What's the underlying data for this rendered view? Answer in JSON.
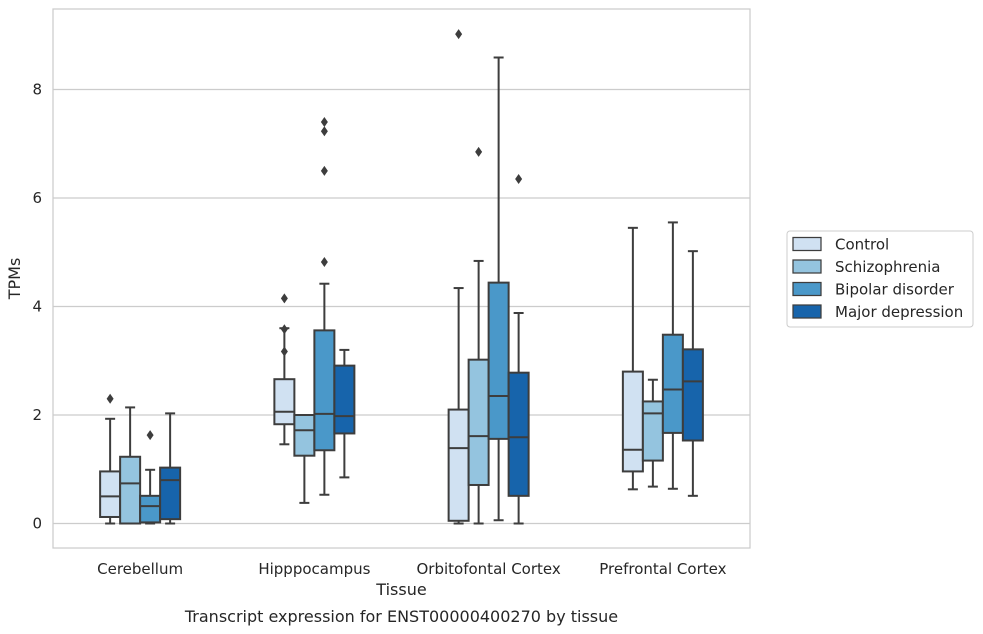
{
  "caption": "Transcript expression for ENST00000400270 by tissue",
  "chart_data": {
    "type": "boxplot",
    "xlabel": "Tissue",
    "ylabel": "TPMs",
    "ylim": [
      -0.45,
      9.45
    ],
    "yticks": [
      0,
      2,
      4,
      6,
      8
    ],
    "grid": "horizontal",
    "legend_position": "right",
    "categories": [
      "Cerebellum",
      "Hipppocampus",
      "Orbitofontal Cortex",
      "Prefrontal Cortex"
    ],
    "series": [
      {
        "name": "Control",
        "color": "#d0e1f2",
        "boxes": [
          {
            "whislo": 0.0,
            "q1": 0.12,
            "med": 0.5,
            "q3": 0.96,
            "whishi": 1.93,
            "fliers": [
              2.3
            ]
          },
          {
            "whislo": 1.46,
            "q1": 1.83,
            "med": 2.06,
            "q3": 2.66,
            "whishi": 3.6,
            "fliers": [
              4.15,
              3.58,
              3.17
            ]
          },
          {
            "whislo": 0.0,
            "q1": 0.05,
            "med": 1.39,
            "q3": 2.1,
            "whishi": 4.34,
            "fliers": [
              9.02
            ]
          },
          {
            "whislo": 0.63,
            "q1": 0.96,
            "med": 1.36,
            "q3": 2.8,
            "whishi": 5.45,
            "fliers": []
          }
        ]
      },
      {
        "name": "Schizophrenia",
        "color": "#94c4df",
        "boxes": [
          {
            "whislo": 0.0,
            "q1": 0.0,
            "med": 0.74,
            "q3": 1.23,
            "whishi": 2.14,
            "fliers": []
          },
          {
            "whislo": 0.38,
            "q1": 1.25,
            "med": 1.72,
            "q3": 2.0,
            "whishi": 2.0,
            "fliers": []
          },
          {
            "whislo": 0.0,
            "q1": 0.71,
            "med": 1.61,
            "q3": 3.02,
            "whishi": 4.84,
            "fliers": [
              6.85
            ]
          },
          {
            "whislo": 0.68,
            "q1": 1.16,
            "med": 2.03,
            "q3": 2.25,
            "whishi": 2.65,
            "fliers": []
          }
        ]
      },
      {
        "name": "Bipolar disorder",
        "color": "#4a98c9",
        "boxes": [
          {
            "whislo": 0.0,
            "q1": 0.02,
            "med": 0.32,
            "q3": 0.51,
            "whishi": 0.99,
            "fliers": [
              1.63
            ]
          },
          {
            "whislo": 0.53,
            "q1": 1.35,
            "med": 2.02,
            "q3": 3.56,
            "whishi": 4.42,
            "fliers": [
              7.4,
              7.23,
              6.5,
              4.82
            ]
          },
          {
            "whislo": 0.06,
            "q1": 1.56,
            "med": 2.35,
            "q3": 4.44,
            "whishi": 8.59,
            "fliers": []
          },
          {
            "whislo": 0.64,
            "q1": 1.67,
            "med": 2.47,
            "q3": 3.48,
            "whishi": 5.55,
            "fliers": []
          }
        ]
      },
      {
        "name": "Major depression",
        "color": "#1764ab",
        "boxes": [
          {
            "whislo": 0.0,
            "q1": 0.08,
            "med": 0.8,
            "q3": 1.03,
            "whishi": 2.03,
            "fliers": []
          },
          {
            "whislo": 0.85,
            "q1": 1.66,
            "med": 1.98,
            "q3": 2.91,
            "whishi": 3.2,
            "fliers": []
          },
          {
            "whislo": 0.0,
            "q1": 0.51,
            "med": 1.59,
            "q3": 2.78,
            "whishi": 3.88,
            "fliers": [
              6.35
            ]
          },
          {
            "whislo": 0.51,
            "q1": 1.53,
            "med": 2.62,
            "q3": 3.21,
            "whishi": 5.02,
            "fliers": []
          }
        ]
      }
    ]
  }
}
